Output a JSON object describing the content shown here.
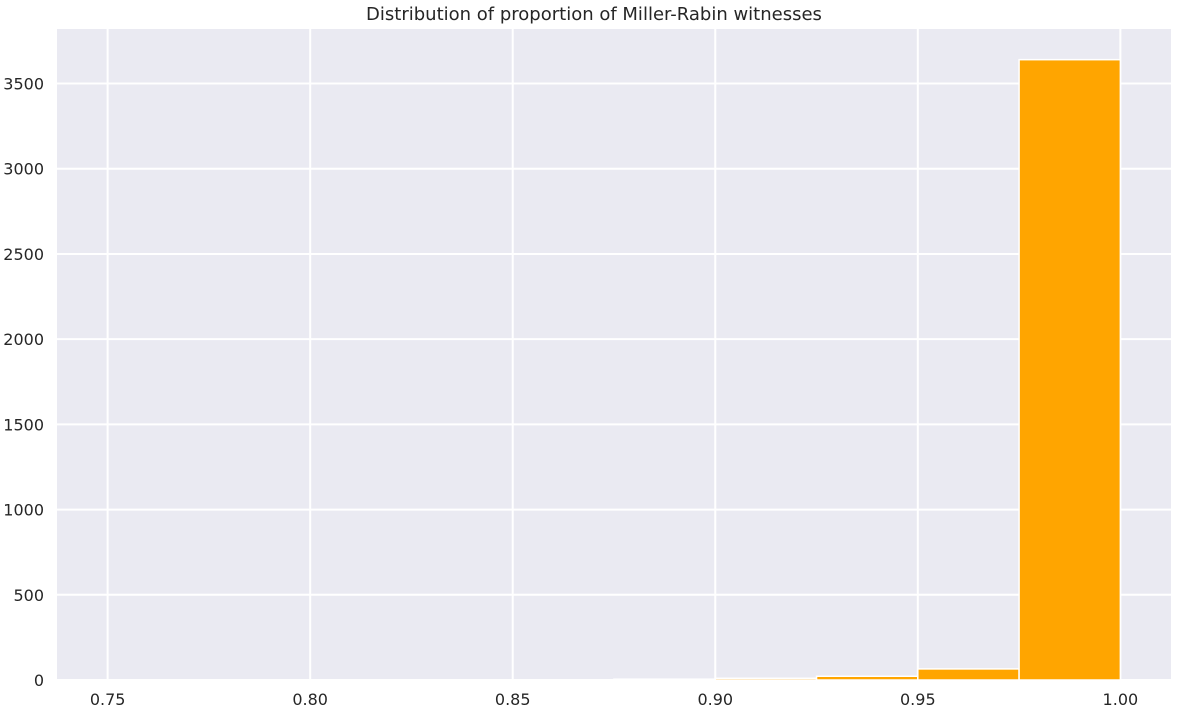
{
  "chart_data": {
    "type": "bar",
    "title": "Distribution of proportion of Miller-Rabin witnesses",
    "xlabel": "",
    "ylabel": "",
    "xlim": [
      0.7375,
      1.0125
    ],
    "ylim": [
      0,
      3820
    ],
    "xticks": [
      0.75,
      0.8,
      0.85,
      0.9,
      0.95,
      1.0
    ],
    "xtick_labels": [
      "0.75",
      "0.80",
      "0.85",
      "0.90",
      "0.95",
      "1.00"
    ],
    "yticks": [
      0,
      500,
      1000,
      1500,
      2000,
      2500,
      3000,
      3500
    ],
    "ytick_labels": [
      "0",
      "500",
      "1000",
      "1500",
      "2000",
      "2500",
      "3000",
      "3500"
    ],
    "bins": [
      {
        "x0": 0.75,
        "x1": 0.775,
        "count": 1
      },
      {
        "x0": 0.775,
        "x1": 0.8,
        "count": 0
      },
      {
        "x0": 0.8,
        "x1": 0.825,
        "count": 0
      },
      {
        "x0": 0.825,
        "x1": 0.85,
        "count": 1
      },
      {
        "x0": 0.85,
        "x1": 0.875,
        "count": 1
      },
      {
        "x0": 0.875,
        "x1": 0.9,
        "count": 5
      },
      {
        "x0": 0.9,
        "x1": 0.925,
        "count": 10
      },
      {
        "x0": 0.925,
        "x1": 0.95,
        "count": 22
      },
      {
        "x0": 0.95,
        "x1": 0.975,
        "count": 65
      },
      {
        "x0": 0.975,
        "x1": 1.0,
        "count": 3640
      }
    ],
    "grid": true,
    "legend": "none",
    "colors": {
      "bar": "#ffa500",
      "background": "#eaeaf2",
      "grid": "#ffffff"
    }
  }
}
